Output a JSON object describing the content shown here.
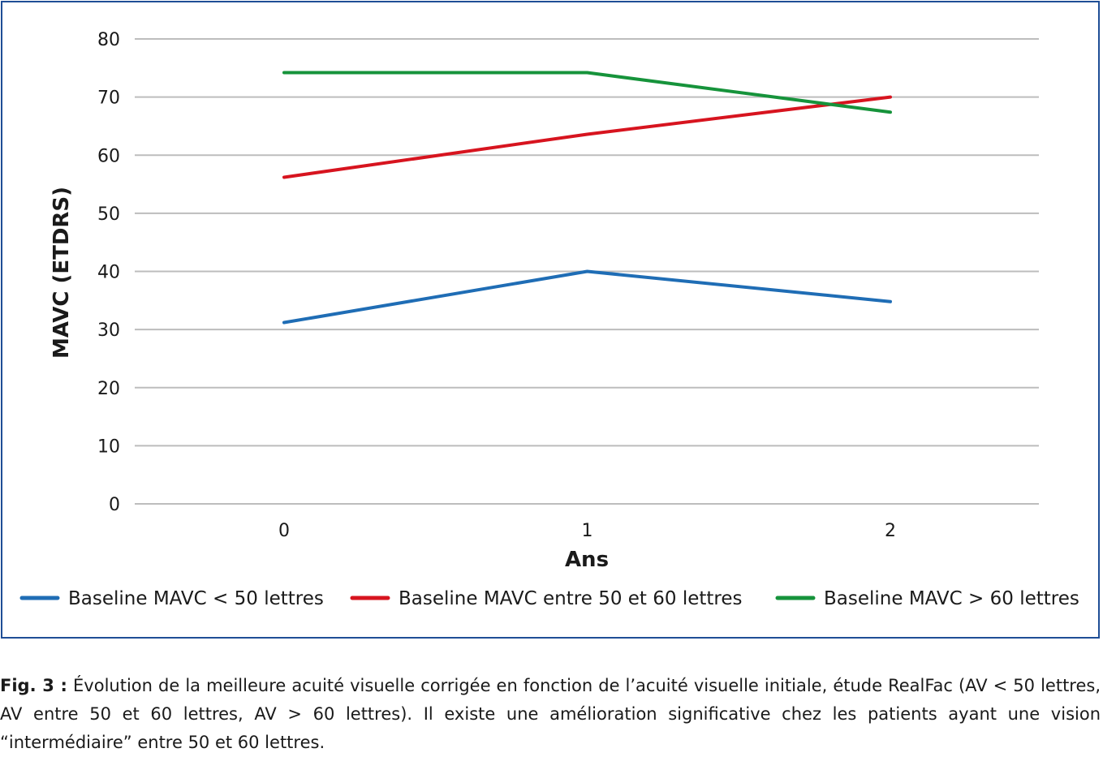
{
  "chart_data": {
    "type": "line",
    "x": [
      0,
      1,
      2
    ],
    "xlabel": "Ans",
    "ylabel": "MAVC (ETDRS)",
    "ylim": [
      0,
      80
    ],
    "yticks": [
      0,
      10,
      20,
      30,
      40,
      50,
      60,
      70,
      80
    ],
    "grid": true,
    "legend_position": "bottom",
    "series": [
      {
        "name": "Baseline MAVC < 50 lettres",
        "color": "#1f6db5",
        "values": [
          31.2,
          40.0,
          34.8
        ]
      },
      {
        "name": "Baseline MAVC entre 50 et 60 lettres",
        "color": "#d7141f",
        "values": [
          56.2,
          63.6,
          70.0
        ]
      },
      {
        "name": "Baseline MAVC > 60 lettres",
        "color": "#16933b",
        "values": [
          74.2,
          74.2,
          67.4
        ]
      }
    ]
  },
  "caption": {
    "label": "Fig. 3 :",
    "text": " Évolution de la meilleure acuité visuelle corrigée en fonction de l’acuité visuelle initiale, étude RealFac (AV < 50 lettres, AV entre 50 et 60 lettres, AV > 60 lettres). Il existe une amélioration significative chez les patients ayant une vision “intermédiaire” entre 50 et 60 lettres."
  },
  "colors": {
    "frame": "#1f4e96",
    "grid": "#bdbdbd"
  }
}
